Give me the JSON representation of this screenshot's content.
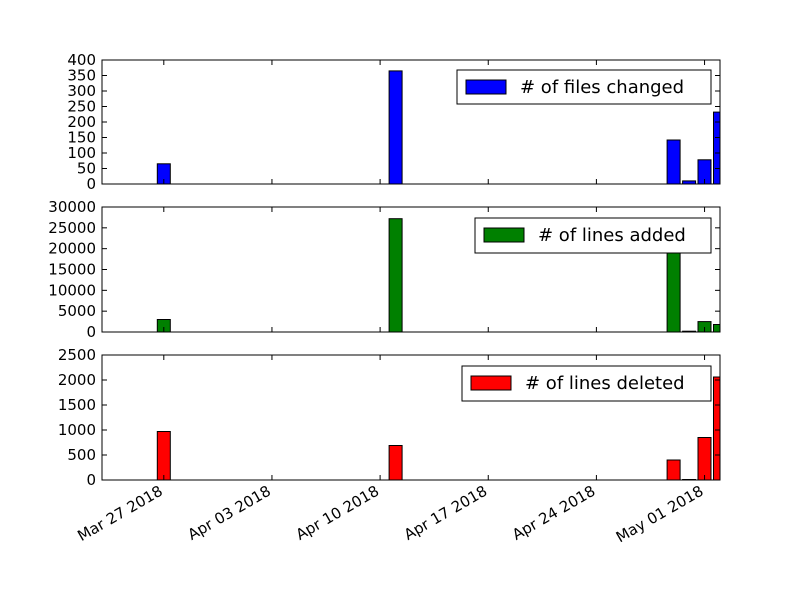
{
  "chart_data": [
    {
      "type": "bar",
      "x_type": "date",
      "xlim": [
        "2018-03-23",
        "2018-05-02"
      ],
      "ylim": [
        0,
        400
      ],
      "yticks": [
        0,
        50,
        100,
        150,
        200,
        250,
        300,
        350,
        400
      ],
      "legend": {
        "label": "# of files changed",
        "position": "upper-right"
      },
      "series": [
        {
          "name": "# of files changed",
          "color": "#0000ff",
          "points": [
            {
              "x": "2018-03-27",
              "y": 65
            },
            {
              "x": "2018-04-11",
              "y": 365
            },
            {
              "x": "2018-04-29",
              "y": 142
            },
            {
              "x": "2018-04-30",
              "y": 10
            },
            {
              "x": "2018-05-01",
              "y": 78
            },
            {
              "x": "2018-05-02",
              "y": 232
            }
          ]
        }
      ]
    },
    {
      "type": "bar",
      "x_type": "date",
      "xlim": [
        "2018-03-23",
        "2018-05-02"
      ],
      "ylim": [
        0,
        30000
      ],
      "yticks": [
        0,
        5000,
        10000,
        15000,
        20000,
        25000,
        30000
      ],
      "legend": {
        "label": "# of lines added",
        "position": "upper-right"
      },
      "series": [
        {
          "name": "# of lines added",
          "color": "#008000",
          "points": [
            {
              "x": "2018-03-27",
              "y": 3000
            },
            {
              "x": "2018-04-11",
              "y": 27200
            },
            {
              "x": "2018-04-29",
              "y": 19200
            },
            {
              "x": "2018-04-30",
              "y": 200
            },
            {
              "x": "2018-05-01",
              "y": 2500
            },
            {
              "x": "2018-05-02",
              "y": 1800
            }
          ]
        }
      ]
    },
    {
      "type": "bar",
      "x_type": "date",
      "xlim": [
        "2018-03-23",
        "2018-05-02"
      ],
      "ylim": [
        0,
        2500
      ],
      "yticks": [
        0,
        500,
        1000,
        1500,
        2000,
        2500
      ],
      "legend": {
        "label": "# of lines deleted",
        "position": "upper-right"
      },
      "series": [
        {
          "name": "# of lines deleted",
          "color": "#ff0000",
          "points": [
            {
              "x": "2018-03-27",
              "y": 970
            },
            {
              "x": "2018-04-11",
              "y": 690
            },
            {
              "x": "2018-04-29",
              "y": 400
            },
            {
              "x": "2018-04-30",
              "y": 10
            },
            {
              "x": "2018-05-01",
              "y": 850
            },
            {
              "x": "2018-05-02",
              "y": 2060
            }
          ]
        }
      ],
      "xticks": [
        {
          "x": "2018-03-27",
          "label": "Mar 27 2018"
        },
        {
          "x": "2018-04-03",
          "label": "Apr 03 2018"
        },
        {
          "x": "2018-04-10",
          "label": "Apr 10 2018"
        },
        {
          "x": "2018-04-17",
          "label": "Apr 17 2018"
        },
        {
          "x": "2018-04-24",
          "label": "Apr 24 2018"
        },
        {
          "x": "2018-05-01",
          "label": "May 01 2018"
        }
      ]
    }
  ]
}
